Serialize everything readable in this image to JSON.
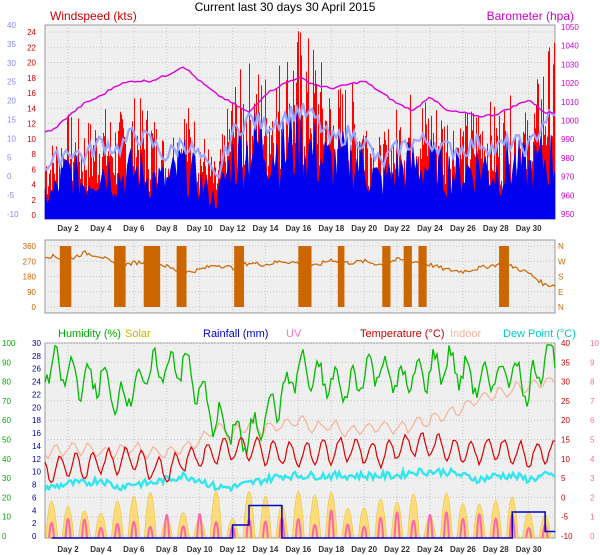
{
  "title": "Current last 30 days 30 April 2015",
  "x_days": [
    "Day 2",
    "Day 4",
    "Day 6",
    "Day 8",
    "Day 10",
    "Day 12",
    "Day 14",
    "Day 16",
    "Day 18",
    "Day 20",
    "Day 22",
    "Day 24",
    "Day 26",
    "Day 28",
    "Day 30"
  ],
  "colors": {
    "wind": "#ff0000",
    "gust": "#0000ee",
    "avgwind": "#9aa6ff",
    "baro": "#dd00dd",
    "dir": "#cc6600",
    "humidity": "#00bb00",
    "solar": "#ffd966",
    "rain": "#0000cc",
    "uv": "#ff66aa",
    "temp": "#dd0000",
    "indoor": "#f3b49a",
    "dew": "#33e6ee"
  },
  "chart_data": [
    {
      "type": "line",
      "id": "wind",
      "legend_left": "Windspeed (kts)",
      "legend_right": "Barometer (hpa)",
      "y_left_wind_ticks": [
        "24",
        "22",
        "20",
        "18",
        "16",
        "14",
        "12",
        "10",
        "8",
        "6",
        "4",
        "2",
        "0"
      ],
      "y_left_temp_ticks": [
        "40",
        "35",
        "30",
        "25",
        "20",
        "15",
        "10",
        "5",
        "0",
        "-5",
        "-10"
      ],
      "y_right_ticks": [
        "1050",
        "1040",
        "1030",
        "1020",
        "1010",
        "1000",
        "990",
        "980",
        "970",
        "960",
        "950"
      ],
      "ylim_wind": [
        0,
        25
      ],
      "ylim_baro": [
        948,
        1052
      ],
      "series": [
        {
          "key": "barometer",
          "x": [
            1,
            2,
            3,
            4,
            5,
            6,
            7,
            8,
            9,
            10,
            11,
            12,
            13,
            14,
            15,
            16,
            17,
            18,
            19,
            20,
            21,
            22,
            23,
            24,
            25,
            26,
            27,
            28,
            29,
            30,
            31
          ],
          "values": [
            995,
            1003,
            1010,
            1014,
            1020,
            1022,
            1022,
            1025,
            1030,
            1022,
            1015,
            1010,
            1005,
            1015,
            1020,
            1024,
            1020,
            1018,
            1020,
            1022,
            1016,
            1010,
            1006,
            1014,
            1006,
            1005,
            1003,
            1004,
            1008,
            1012,
            1005
          ]
        },
        {
          "key": "windspeed",
          "x": [
            1,
            2,
            3,
            4,
            5,
            6,
            7,
            8,
            9,
            10,
            11,
            12,
            13,
            14,
            15,
            16,
            17,
            18,
            19,
            20,
            21,
            22,
            23,
            24,
            25,
            26,
            27,
            28,
            29,
            30,
            31
          ],
          "values": [
            9,
            12,
            11,
            13,
            12,
            14,
            13,
            9,
            14,
            11,
            6,
            16,
            18,
            17,
            19,
            22,
            20,
            15,
            16,
            14,
            9,
            13,
            15,
            14,
            13,
            12,
            14,
            13,
            14,
            12,
            20
          ]
        },
        {
          "key": "gust",
          "x": [
            1,
            2,
            3,
            4,
            5,
            6,
            7,
            8,
            9,
            10,
            11,
            12,
            13,
            14,
            15,
            16,
            17,
            18,
            19,
            20,
            21,
            22,
            23,
            24,
            25,
            26,
            27,
            28,
            29,
            30,
            31
          ],
          "values": [
            4,
            8,
            6,
            9,
            7,
            8,
            7,
            6,
            9,
            6,
            3,
            10,
            12,
            13,
            11,
            13,
            11,
            9,
            10,
            9,
            6,
            8,
            9,
            9,
            8,
            8,
            9,
            8,
            9,
            8,
            10
          ]
        },
        {
          "key": "avg",
          "x": [
            1,
            2,
            3,
            4,
            5,
            6,
            7,
            8,
            9,
            10,
            11,
            12,
            13,
            14,
            15,
            16,
            17,
            18,
            19,
            20,
            21,
            22,
            23,
            24,
            25,
            26,
            27,
            28,
            29,
            30,
            31
          ],
          "values": [
            7,
            9,
            8,
            10,
            9,
            11,
            10,
            8,
            10,
            8,
            5,
            11,
            13,
            12,
            13,
            14,
            13,
            10,
            11,
            10,
            7,
            9,
            10,
            10,
            9,
            9,
            10,
            9,
            10,
            9,
            13
          ]
        }
      ]
    },
    {
      "type": "line",
      "id": "direction",
      "y_left_ticks": [
        "360",
        "270",
        "180",
        "90",
        "0"
      ],
      "y_right_labels": [
        "N",
        "W",
        "S",
        "E",
        "N"
      ],
      "ylim": [
        0,
        360
      ],
      "series": [
        {
          "key": "wind_direction",
          "x": [
            1,
            2,
            3,
            4,
            5,
            6,
            7,
            8,
            9,
            10,
            11,
            12,
            13,
            14,
            15,
            16,
            17,
            18,
            19,
            20,
            21,
            22,
            23,
            24,
            25,
            26,
            27,
            28,
            29,
            30,
            31
          ],
          "values": [
            300,
            280,
            320,
            300,
            240,
            260,
            270,
            240,
            200,
            220,
            250,
            230,
            260,
            250,
            270,
            260,
            240,
            280,
            260,
            270,
            250,
            280,
            270,
            250,
            220,
            210,
            230,
            250,
            240,
            200,
            130
          ]
        }
      ]
    },
    {
      "type": "line",
      "id": "climate",
      "legend": [
        "Humidity (%)",
        "Solar",
        "Rainfall (mm)",
        "UV",
        "Temperature (°C)",
        "Indoor",
        "Dew Point (°C)"
      ],
      "y_humidity_ticks": [
        "100",
        "90",
        "80",
        "70",
        "60",
        "50",
        "40",
        "30",
        "20",
        "10",
        "0"
      ],
      "y_rain_ticks": [
        "30",
        "28",
        "26",
        "24",
        "22",
        "20",
        "18",
        "16",
        "14",
        "12",
        "10",
        "8",
        "6",
        "4",
        "2",
        "0"
      ],
      "y_temp_ticks": [
        "40",
        "35",
        "30",
        "25",
        "20",
        "15",
        "10",
        "5",
        "0",
        "-5",
        "-10"
      ],
      "y_uv_ticks": [
        "10",
        "9",
        "8",
        "7",
        "6",
        "5",
        "4",
        "3",
        "2",
        "1",
        "0"
      ],
      "ylim_humidity": [
        0,
        100
      ],
      "ylim_temp": [
        -10,
        40
      ],
      "ylim_rain": [
        0,
        30
      ],
      "ylim_uv": [
        0,
        10
      ],
      "series": [
        {
          "key": "humidity",
          "x": [
            1,
            2,
            3,
            4,
            5,
            6,
            7,
            8,
            9,
            10,
            11,
            12,
            13,
            14,
            15,
            16,
            17,
            18,
            19,
            20,
            21,
            22,
            23,
            24,
            25,
            26,
            27,
            28,
            29,
            30,
            31
          ],
          "values": [
            88,
            85,
            80,
            82,
            70,
            78,
            85,
            88,
            90,
            75,
            60,
            55,
            50,
            65,
            72,
            88,
            82,
            80,
            76,
            85,
            88,
            80,
            82,
            86,
            90,
            85,
            80,
            82,
            88,
            75,
            95
          ]
        },
        {
          "key": "temperature",
          "x": [
            1,
            2,
            3,
            4,
            5,
            6,
            7,
            8,
            9,
            10,
            11,
            12,
            13,
            14,
            15,
            16,
            17,
            18,
            19,
            20,
            21,
            22,
            23,
            24,
            25,
            26,
            27,
            28,
            29,
            30,
            31
          ],
          "values": [
            7,
            9,
            8,
            10,
            9,
            11,
            8,
            7,
            10,
            11,
            12,
            13,
            13,
            12,
            12,
            11,
            12,
            12,
            13,
            12,
            11,
            13,
            14,
            14,
            13,
            12,
            12,
            13,
            12,
            11,
            12
          ]
        },
        {
          "key": "indoor",
          "x": [
            1,
            2,
            3,
            4,
            5,
            6,
            7,
            8,
            9,
            10,
            11,
            12,
            13,
            14,
            15,
            16,
            17,
            18,
            19,
            20,
            21,
            22,
            23,
            24,
            25,
            26,
            27,
            28,
            29,
            30,
            31
          ],
          "values": [
            12,
            13,
            13,
            12,
            12,
            13,
            12,
            12,
            13,
            15,
            18,
            17,
            19,
            18,
            19,
            20,
            18,
            19,
            17,
            18,
            19,
            18,
            19,
            20,
            22,
            23,
            26,
            27,
            28,
            29,
            30
          ]
        },
        {
          "key": "dewpoint",
          "x": [
            1,
            2,
            3,
            4,
            5,
            6,
            7,
            8,
            9,
            10,
            11,
            12,
            13,
            14,
            15,
            16,
            17,
            18,
            19,
            20,
            21,
            22,
            23,
            24,
            25,
            26,
            27,
            28,
            29,
            30,
            31
          ],
          "values": [
            3,
            4,
            4,
            5,
            3,
            4,
            4,
            5,
            6,
            5,
            3,
            3,
            4,
            5,
            6,
            6,
            6,
            6,
            6,
            6,
            6,
            6,
            7,
            7,
            7,
            6,
            5,
            6,
            6,
            5,
            6
          ]
        },
        {
          "key": "rainfall",
          "x": [
            1,
            2,
            3,
            4,
            5,
            6,
            7,
            8,
            9,
            10,
            11,
            12,
            13,
            14,
            15,
            16,
            17,
            18,
            19,
            20,
            21,
            22,
            23,
            24,
            25,
            26,
            27,
            28,
            29,
            30,
            31
          ],
          "values": [
            0,
            0,
            0,
            0,
            0,
            0,
            0,
            0,
            0,
            0,
            0,
            2,
            5,
            5,
            0,
            0,
            0,
            0,
            0,
            0,
            0,
            0,
            0,
            0,
            0,
            0,
            0,
            0,
            4,
            4,
            1
          ]
        }
      ]
    }
  ]
}
